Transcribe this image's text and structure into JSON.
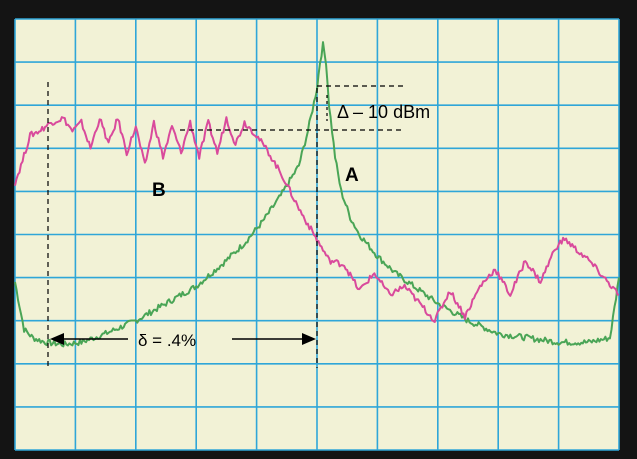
{
  "colors": {
    "bezel": "#141414",
    "screen": "#f2f2d6",
    "grid": "#2fa6d8",
    "trace_a": "#4aa556",
    "trace_b": "#d94a9c",
    "annotation": "#000000"
  },
  "chart_data": {
    "type": "line",
    "title": "",
    "xlabel": "",
    "ylabel": "",
    "grid": true,
    "grid_divisions": {
      "x": 10,
      "y": 10
    },
    "xlim": [
      0,
      10
    ],
    "ylim": [
      0,
      10
    ],
    "series": [
      {
        "name": "A",
        "color": "#4aa556",
        "x": [
          0.0,
          0.15,
          0.3,
          0.5,
          0.8,
          1.1,
          1.5,
          2.0,
          2.5,
          3.0,
          3.5,
          3.8,
          4.1,
          4.4,
          4.7,
          4.85,
          5.0,
          5.05,
          5.1,
          5.15,
          5.2,
          5.3,
          5.4,
          5.55,
          5.7,
          6.0,
          6.3,
          6.6,
          7.0,
          7.5,
          8.0,
          8.5,
          9.0,
          9.5,
          9.85,
          10.0
        ],
        "y": [
          3.9,
          2.8,
          2.6,
          2.5,
          2.45,
          2.5,
          2.7,
          3.0,
          3.4,
          3.8,
          4.4,
          4.8,
          5.3,
          5.9,
          6.6,
          7.4,
          8.4,
          9.0,
          9.4,
          9.0,
          8.0,
          6.8,
          6.0,
          5.4,
          5.0,
          4.5,
          4.1,
          3.8,
          3.4,
          3.0,
          2.7,
          2.6,
          2.5,
          2.5,
          2.6,
          4.0
        ]
      },
      {
        "name": "B",
        "color": "#d94a9c",
        "x": [
          0.0,
          0.1,
          0.25,
          0.4,
          0.6,
          0.8,
          0.95,
          1.1,
          1.25,
          1.4,
          1.55,
          1.7,
          1.85,
          2.0,
          2.15,
          2.3,
          2.45,
          2.6,
          2.75,
          2.9,
          3.05,
          3.2,
          3.35,
          3.5,
          3.65,
          3.8,
          4.0,
          4.2,
          4.45,
          4.7,
          4.95,
          5.2,
          5.45,
          5.7,
          5.95,
          6.2,
          6.45,
          6.7,
          6.95,
          7.2,
          7.45,
          7.7,
          7.95,
          8.2,
          8.45,
          8.7,
          8.95,
          9.1,
          9.25,
          9.5,
          9.75,
          10.0
        ],
        "y": [
          6.2,
          6.6,
          7.3,
          7.4,
          7.6,
          7.7,
          7.4,
          7.6,
          7.0,
          7.7,
          7.1,
          7.7,
          6.9,
          7.5,
          6.6,
          7.6,
          6.8,
          7.5,
          6.9,
          7.6,
          6.8,
          7.6,
          6.9,
          7.7,
          7.1,
          7.6,
          7.3,
          6.9,
          6.3,
          5.6,
          5.0,
          4.4,
          4.3,
          3.7,
          4.1,
          3.6,
          3.8,
          3.4,
          3.0,
          3.7,
          3.1,
          3.8,
          4.2,
          3.6,
          4.4,
          3.9,
          4.7,
          4.9,
          4.7,
          4.4,
          4.0,
          3.6
        ]
      }
    ],
    "annotations": [
      {
        "text": "A",
        "near": "trace A, right of peak"
      },
      {
        "text": "B",
        "near": "trace B, left plateau"
      },
      {
        "text": "Δ – 10 dBm",
        "near": "top-right of peak, between dashed reference lines"
      },
      {
        "text": "δ = .4%",
        "near": "bottom, double arrow between dashed verticals"
      }
    ]
  },
  "labels": {
    "trace_a": "A",
    "trace_b": "B",
    "delta": "Δ – 10 dBm",
    "percent": "δ = .4%"
  }
}
